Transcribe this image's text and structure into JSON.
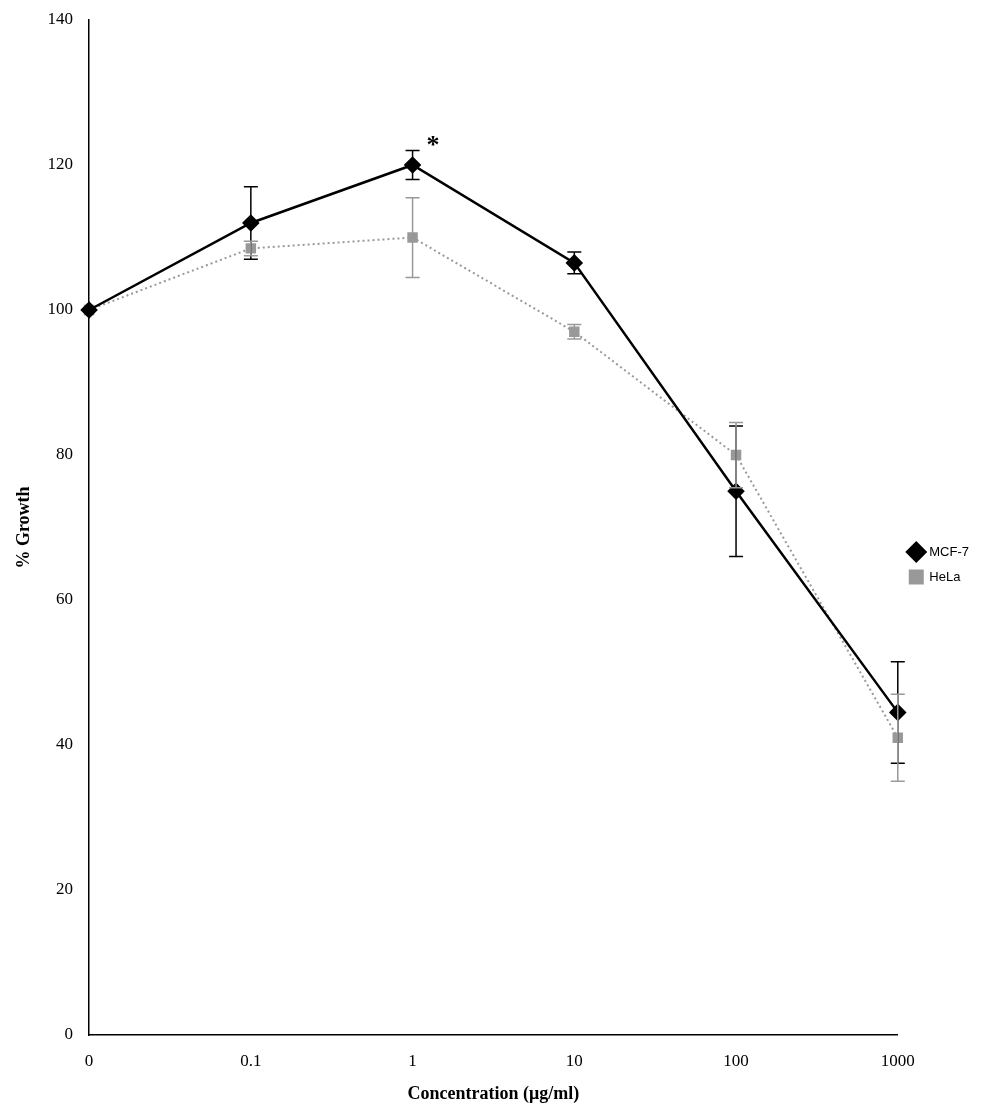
{
  "chart_data": {
    "type": "line",
    "x_label": "Concentration (μg/ml)",
    "y_label": "% Growth",
    "categories": [
      "0",
      "0.1",
      "1",
      "10",
      "100",
      "1000"
    ],
    "series": [
      {
        "name": "MCF-7",
        "color": "#000000",
        "marker": "diamond",
        "line_style": "solid",
        "values": [
          100,
          112,
          120,
          106.5,
          75,
          44.5
        ],
        "errors": [
          0,
          5,
          2,
          1.5,
          9,
          7
        ]
      },
      {
        "name": "HeLa",
        "color": "#999999",
        "marker": "square",
        "line_style": "dotted",
        "values": [
          100,
          108.5,
          110,
          97,
          80,
          41
        ],
        "errors": [
          0,
          1,
          5.5,
          1,
          4.5,
          6
        ]
      }
    ],
    "ylim": [
      0,
      140
    ],
    "yticks": [
      0,
      20,
      40,
      60,
      80,
      100,
      120,
      140
    ],
    "grid": false,
    "legend": "right",
    "annotations": [
      {
        "text": "*",
        "category": "1",
        "series": "MCF-7"
      }
    ]
  }
}
